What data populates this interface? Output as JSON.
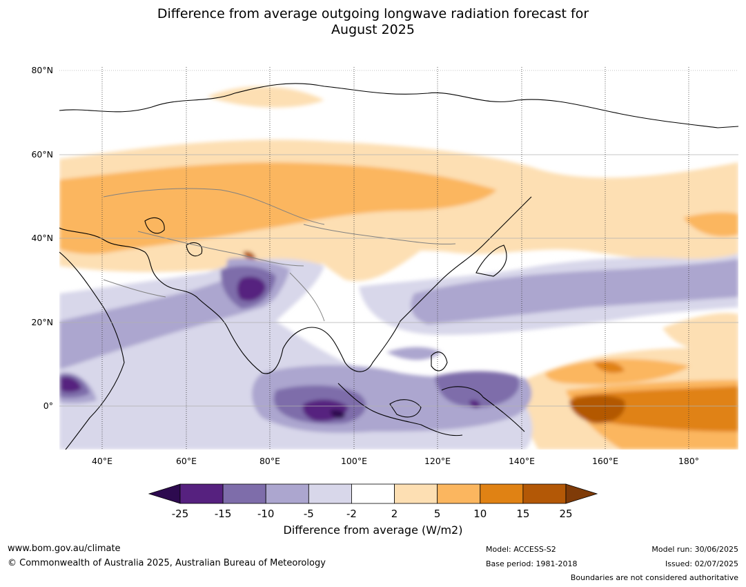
{
  "title": {
    "line1": "Difference from average outgoing longwave radiation forecast for",
    "line2": "August 2025"
  },
  "map": {
    "lat_labels": [
      "80°N",
      "60°N",
      "40°N",
      "20°N",
      "0°"
    ],
    "lon_labels": [
      "40°E",
      "60°E",
      "80°E",
      "100°E",
      "120°E",
      "140°E",
      "160°E",
      "180°"
    ],
    "lat_range": [
      -10,
      80
    ],
    "lon_range": [
      30,
      192
    ]
  },
  "colorbar": {
    "ticks": [
      "-25",
      "-15",
      "-10",
      "-5",
      "-2",
      "2",
      "5",
      "10",
      "15",
      "25"
    ],
    "colors": [
      "#2d0a4f",
      "#56217f",
      "#7e6daa",
      "#aca6cf",
      "#d8d7ea",
      "#ffffff",
      "#fddfb3",
      "#fbb65f",
      "#e08214",
      "#b35806",
      "#7f3b08"
    ],
    "label": "Difference from average (W/m2)"
  },
  "footer": {
    "website": "www.bom.gov.au/climate",
    "copyright": "© Commonwealth of Australia 2025, Australian Bureau of Meteorology",
    "model": "Model: ACCESS-S2",
    "base_period": "Base period: 1981-2018",
    "model_run": "Model run: 30/06/2025",
    "issued": "Issued: 02/07/2025",
    "disclaimer": "Boundaries are not considered authoritative"
  }
}
